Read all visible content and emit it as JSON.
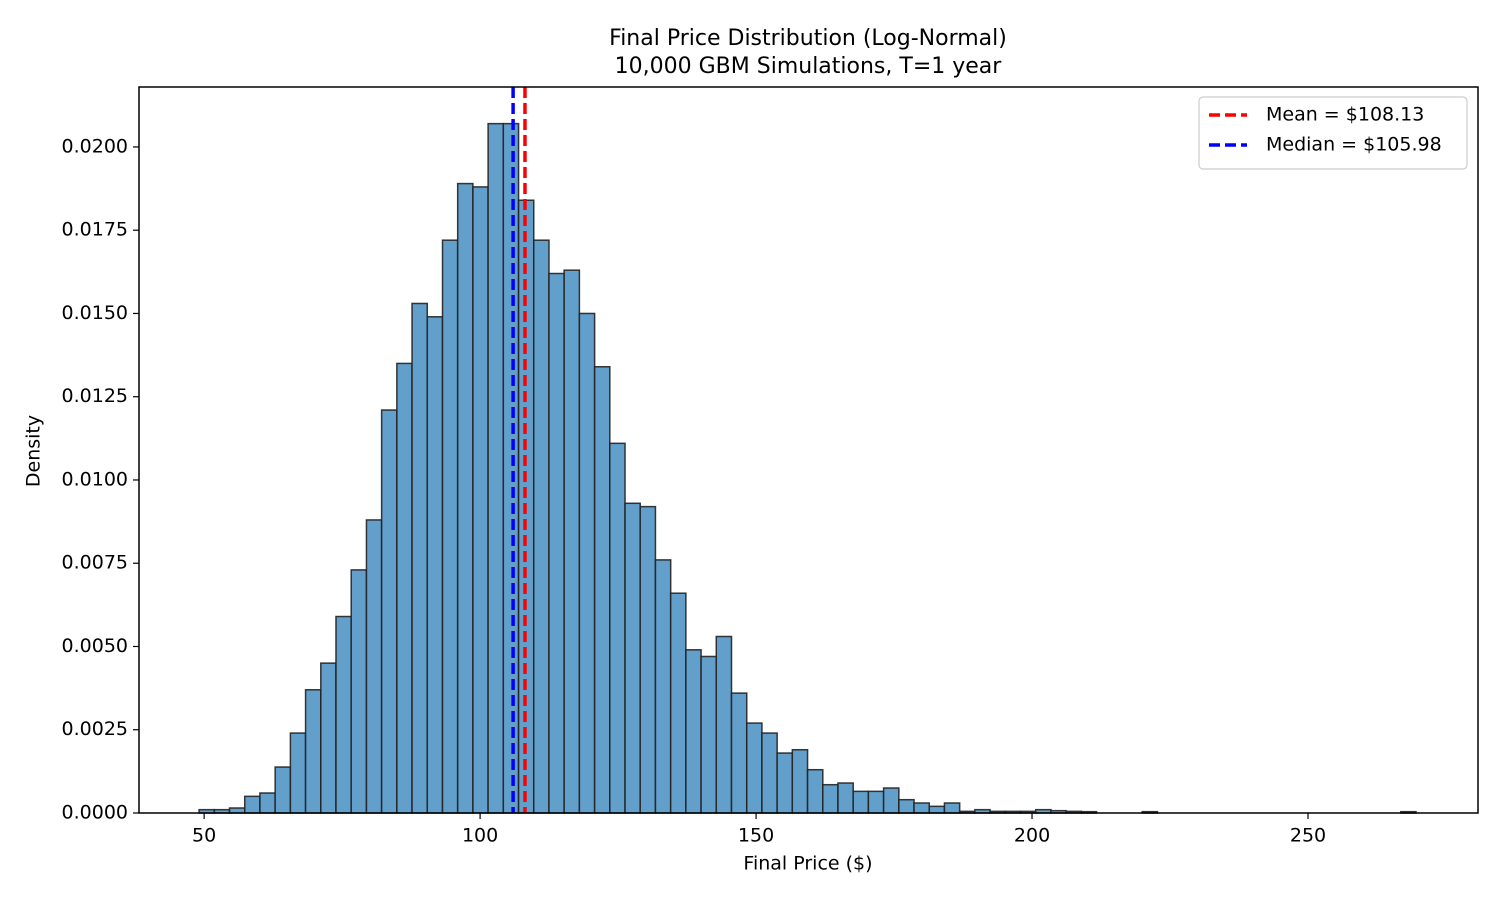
{
  "chart_data": {
    "type": "histogram",
    "title": "Final Price Distribution (Log-Normal)",
    "subtitle": "10,000 GBM Simulations, T=1 year",
    "xlabel": "Final Price ($)",
    "ylabel": "Density",
    "bins": [
      49.09,
      51.85,
      54.6,
      57.36,
      60.11,
      62.87,
      65.63,
      68.38,
      71.14,
      73.89,
      76.65,
      79.41,
      82.16,
      84.92,
      87.67,
      90.43,
      93.19,
      95.94,
      98.7,
      101.45,
      104.21,
      106.97,
      109.72,
      112.48,
      115.23,
      117.99,
      120.75,
      123.5,
      126.26,
      129.01,
      131.77,
      134.53,
      137.28,
      140.04,
      142.79,
      145.55,
      148.31,
      151.06,
      153.82,
      156.57,
      159.33,
      162.09,
      164.84,
      167.6,
      170.35,
      173.11,
      175.87,
      178.62,
      181.38,
      184.13,
      186.89,
      189.65,
      192.4,
      195.16,
      197.91,
      200.67,
      203.43,
      206.18,
      208.94,
      211.69,
      214.45,
      217.21,
      219.96,
      222.72,
      225.47,
      228.23,
      230.99,
      233.74,
      236.5,
      239.25,
      242.01,
      244.77,
      247.52,
      250.28,
      253.03,
      255.79,
      258.55,
      261.3,
      264.06,
      266.81,
      269.57
    ],
    "values": [
      0.0001,
      0.0001,
      0.00015,
      0.0005,
      0.0006,
      0.00138,
      0.0024,
      0.0037,
      0.0045,
      0.0059,
      0.0073,
      0.0088,
      0.0121,
      0.0135,
      0.0153,
      0.0149,
      0.0172,
      0.0189,
      0.0188,
      0.0207,
      0.0207,
      0.0184,
      0.0172,
      0.0162,
      0.0163,
      0.015,
      0.0134,
      0.0111,
      0.0093,
      0.0092,
      0.0076,
      0.0066,
      0.0049,
      0.0047,
      0.0053,
      0.0036,
      0.0027,
      0.0024,
      0.0018,
      0.0019,
      0.0013,
      0.00085,
      0.0009,
      0.00065,
      0.00065,
      0.00075,
      0.0004,
      0.0003,
      0.0002,
      0.0003,
      5e-05,
      0.0001,
      5e-05,
      5e-05,
      5e-05,
      0.0001,
      7e-05,
      5e-05,
      4e-05,
      0,
      0,
      0,
      4e-05,
      0,
      0,
      0,
      0,
      0,
      0,
      0,
      0,
      0,
      0,
      0,
      0,
      0,
      0,
      0,
      0,
      4e-05
    ],
    "color": "#629fca",
    "edgecolor": "#222222",
    "vlines": [
      {
        "name": "Mean = $108.13",
        "value": 108.13,
        "color": "#ff0000"
      },
      {
        "name": "Median = $105.98",
        "value": 105.98,
        "color": "#0000ff"
      }
    ],
    "legend": "upper right",
    "xlim": [
      38.2,
      280.8
    ],
    "xticks": [
      50,
      100,
      150,
      200,
      250
    ],
    "ylim": [
      0,
      0.0218
    ],
    "yticks": [
      {
        "value": 0,
        "label": "0.0000"
      },
      {
        "value": 0.0025,
        "label": "0.0025"
      },
      {
        "value": 0.005,
        "label": "0.0050"
      },
      {
        "value": 0.0075,
        "label": "0.0075"
      },
      {
        "value": 0.01,
        "label": "0.0100"
      },
      {
        "value": 0.0125,
        "label": "0.0125"
      },
      {
        "value": 0.015,
        "label": "0.0150"
      },
      {
        "value": 0.0175,
        "label": "0.0175"
      },
      {
        "value": 0.02,
        "label": "0.0200"
      }
    ]
  }
}
